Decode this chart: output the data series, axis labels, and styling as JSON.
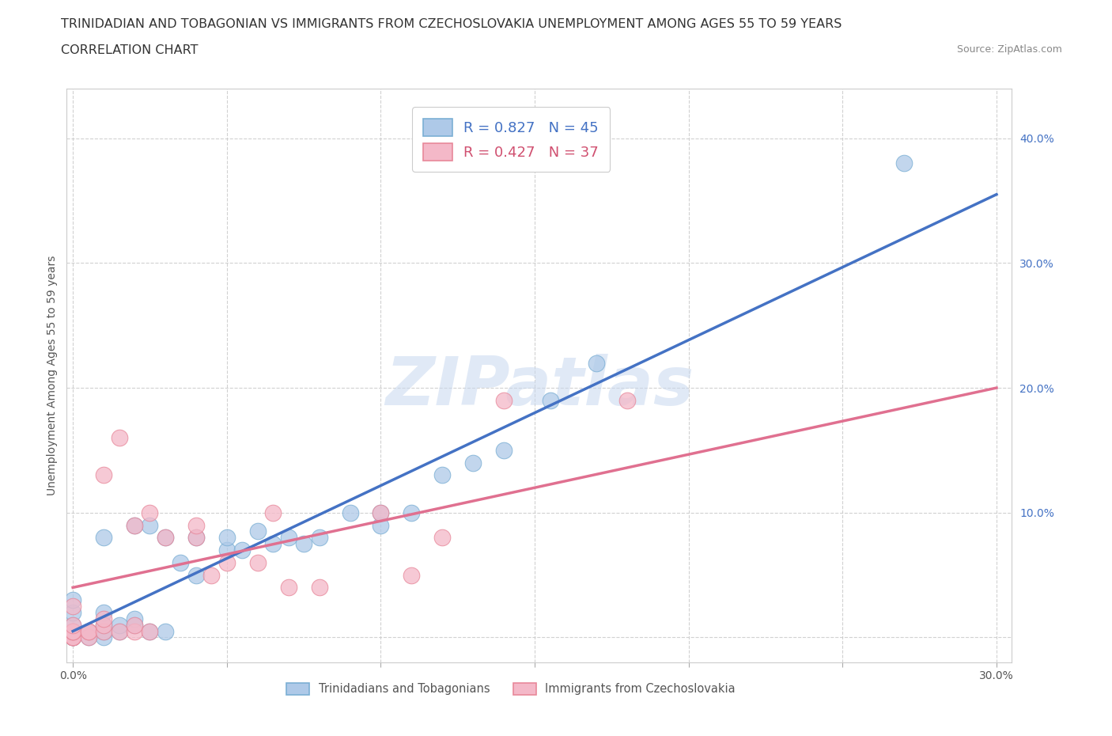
{
  "title_line1": "TRINIDADIAN AND TOBAGONIAN VS IMMIGRANTS FROM CZECHOSLOVAKIA UNEMPLOYMENT AMONG AGES 55 TO 59 YEARS",
  "title_line2": "CORRELATION CHART",
  "source_text": "Source: ZipAtlas.com",
  "ylabel": "Unemployment Among Ages 55 to 59 years",
  "watermark": "ZIPatlas",
  "xlim": [
    -0.002,
    0.305
  ],
  "ylim": [
    -0.02,
    0.44
  ],
  "xticks": [
    0.0,
    0.05,
    0.1,
    0.15,
    0.2,
    0.25,
    0.3
  ],
  "xtick_labels": [
    "0.0%",
    "",
    "",
    "",
    "",
    "",
    "30.0%"
  ],
  "yticks": [
    0.0,
    0.1,
    0.2,
    0.3,
    0.4
  ],
  "ytick_labels": [
    "",
    "10.0%",
    "20.0%",
    "30.0%",
    "40.0%"
  ],
  "blue_scatter_color": "#aec9e8",
  "blue_edge_color": "#7bafd4",
  "pink_scatter_color": "#f4b8c8",
  "pink_edge_color": "#e8889a",
  "blue_line_color": "#4472c4",
  "pink_line_color": "#e07090",
  "blue_R": 0.827,
  "blue_N": 45,
  "pink_R": 0.427,
  "pink_N": 37,
  "legend_label_blue": "Trinidadians and Tobagonians",
  "legend_label_pink": "Immigrants from Czechoslovakia",
  "blue_scatter_x": [
    0.0,
    0.0,
    0.0,
    0.0,
    0.0,
    0.0,
    0.0,
    0.0,
    0.005,
    0.005,
    0.01,
    0.01,
    0.01,
    0.01,
    0.01,
    0.015,
    0.015,
    0.02,
    0.02,
    0.02,
    0.025,
    0.025,
    0.03,
    0.03,
    0.035,
    0.04,
    0.04,
    0.05,
    0.05,
    0.055,
    0.06,
    0.065,
    0.07,
    0.075,
    0.08,
    0.09,
    0.1,
    0.1,
    0.11,
    0.12,
    0.13,
    0.14,
    0.155,
    0.17,
    0.27
  ],
  "blue_scatter_y": [
    0.0,
    0.0,
    0.0,
    0.005,
    0.005,
    0.01,
    0.02,
    0.03,
    0.0,
    0.005,
    0.0,
    0.005,
    0.01,
    0.02,
    0.08,
    0.005,
    0.01,
    0.01,
    0.015,
    0.09,
    0.005,
    0.09,
    0.005,
    0.08,
    0.06,
    0.05,
    0.08,
    0.07,
    0.08,
    0.07,
    0.085,
    0.075,
    0.08,
    0.075,
    0.08,
    0.1,
    0.09,
    0.1,
    0.1,
    0.13,
    0.14,
    0.15,
    0.19,
    0.22,
    0.38
  ],
  "pink_scatter_x": [
    0.0,
    0.0,
    0.0,
    0.0,
    0.0,
    0.0,
    0.0,
    0.0,
    0.0,
    0.005,
    0.005,
    0.005,
    0.01,
    0.01,
    0.01,
    0.01,
    0.015,
    0.015,
    0.02,
    0.02,
    0.02,
    0.025,
    0.025,
    0.03,
    0.04,
    0.04,
    0.045,
    0.05,
    0.06,
    0.065,
    0.07,
    0.08,
    0.1,
    0.11,
    0.12,
    0.14,
    0.18
  ],
  "pink_scatter_y": [
    0.0,
    0.0,
    0.0,
    0.0,
    0.005,
    0.005,
    0.005,
    0.01,
    0.025,
    0.0,
    0.005,
    0.005,
    0.005,
    0.01,
    0.015,
    0.13,
    0.005,
    0.16,
    0.005,
    0.01,
    0.09,
    0.005,
    0.1,
    0.08,
    0.08,
    0.09,
    0.05,
    0.06,
    0.06,
    0.1,
    0.04,
    0.04,
    0.1,
    0.05,
    0.08,
    0.19,
    0.19
  ],
  "blue_line_x": [
    0.0,
    0.3
  ],
  "blue_line_y": [
    0.005,
    0.355
  ],
  "pink_line_x": [
    0.0,
    0.3
  ],
  "pink_line_y": [
    0.04,
    0.2
  ],
  "grid_color": "#cccccc",
  "bg_color": "#ffffff",
  "title_fontsize": 11.5,
  "ylabel_fontsize": 10,
  "tick_fontsize": 10,
  "legend_fontsize": 13
}
